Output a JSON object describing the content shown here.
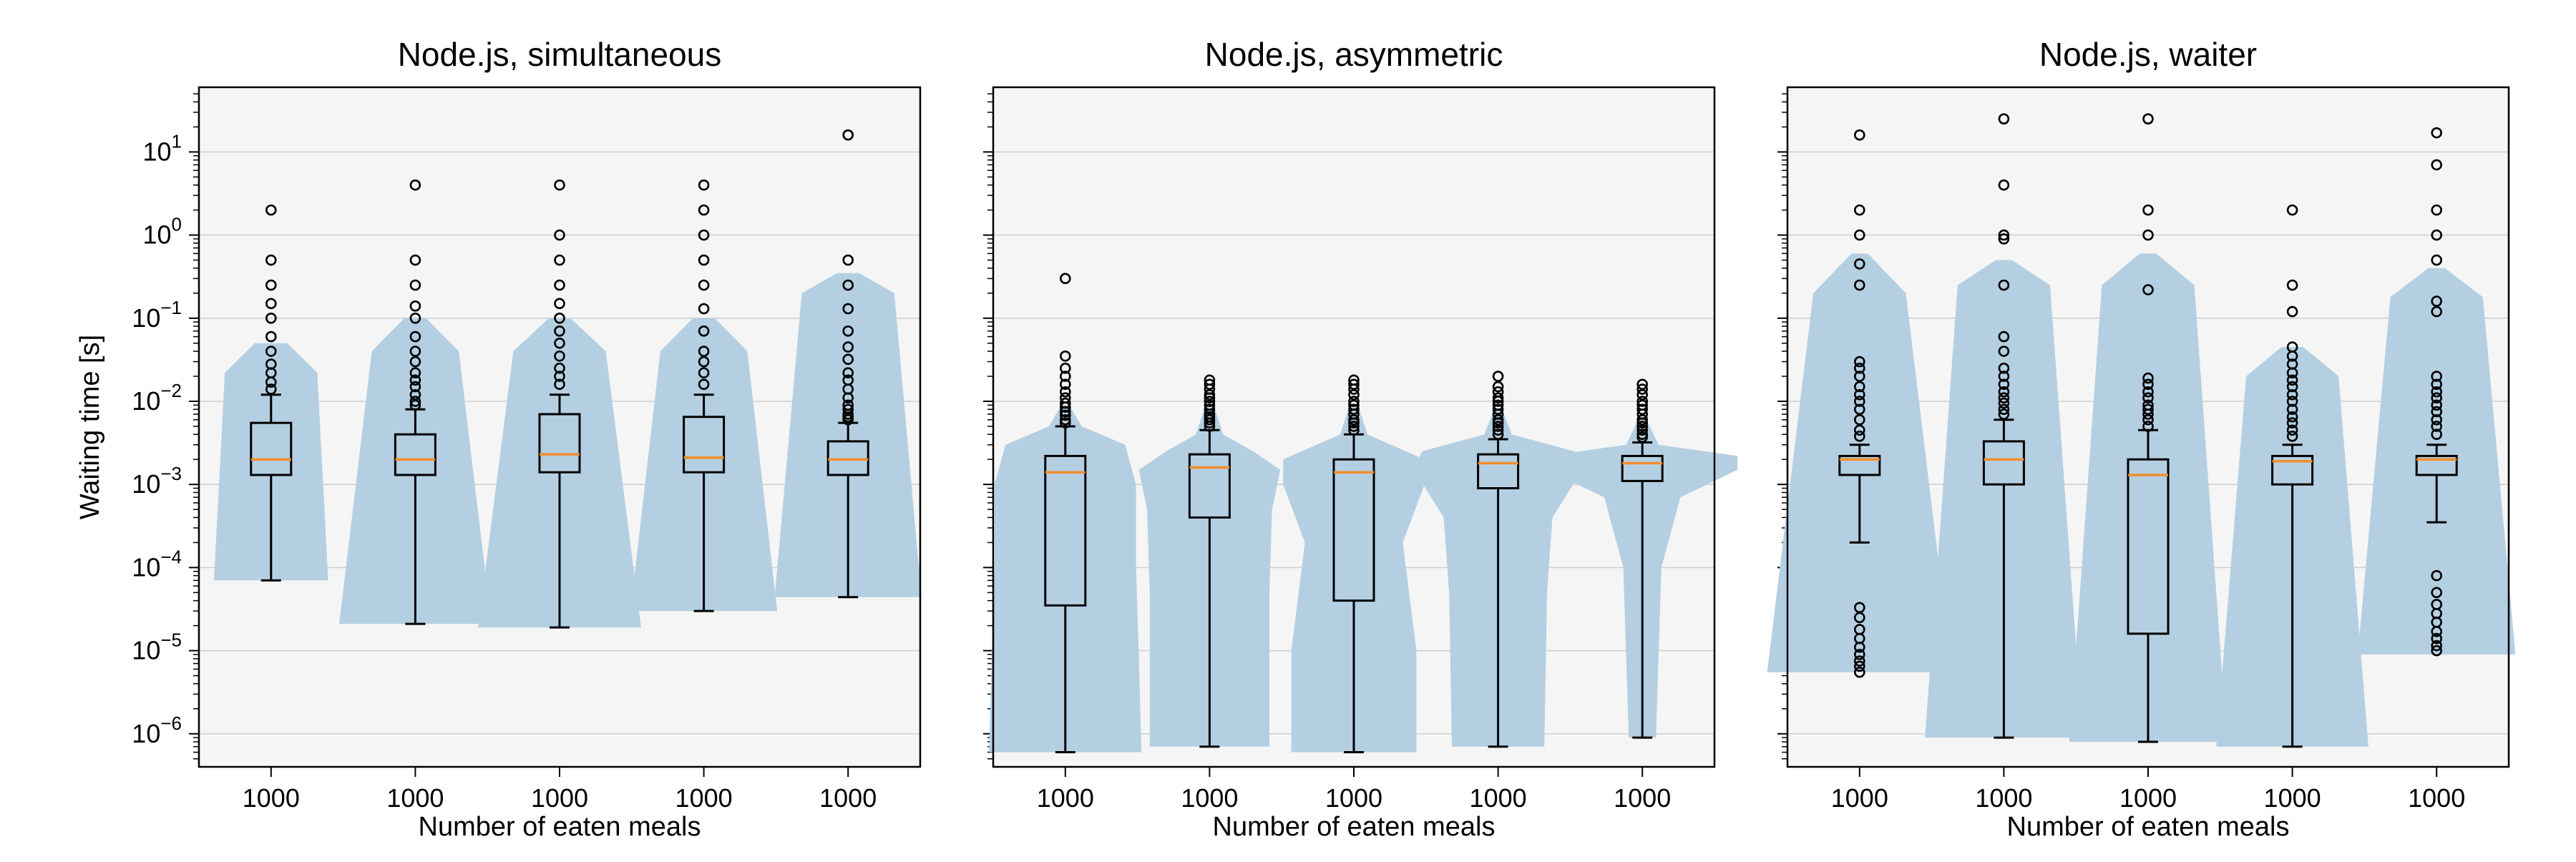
{
  "chart_data": [
    {
      "type": "box-violin",
      "title": "Node.js, simultaneous",
      "xlabel": "Number of eaten meals",
      "ylabel": "Waiting time [s]",
      "yscale": "log",
      "ylim": [
        4e-07,
        60
      ],
      "grid": "y",
      "categories": [
        "1000",
        "1000",
        "1000",
        "1000",
        "1000"
      ],
      "y_ticks": [
        {
          "base": "10",
          "exp": "−6"
        },
        {
          "base": "10",
          "exp": "−5"
        },
        {
          "base": "10",
          "exp": "−4"
        },
        {
          "base": "10",
          "exp": "−3"
        },
        {
          "base": "10",
          "exp": "−2"
        },
        {
          "base": "10",
          "exp": "−1"
        },
        {
          "base": "10",
          "exp": "0"
        },
        {
          "base": "10",
          "exp": "1"
        }
      ],
      "boxes": [
        {
          "whislo": 7e-05,
          "q1": 0.0013,
          "med": 0.002,
          "q3": 0.0055,
          "whishi": 0.012,
          "fliers": [
            2.0,
            0.5,
            0.25,
            0.15,
            0.1,
            0.06,
            0.04,
            0.028,
            0.022,
            0.017,
            0.014
          ],
          "violin": [
            [
              7e-05,
              0.0021
            ],
            [
              0.022,
              0.0017
            ],
            [
              0.05,
              0.0006
            ]
          ]
        },
        {
          "whislo": 2.1e-05,
          "q1": 0.0013,
          "med": 0.002,
          "q3": 0.004,
          "whishi": 0.008,
          "fliers": [
            4.0,
            0.5,
            0.25,
            0.14,
            0.1,
            0.06,
            0.04,
            0.03,
            0.022,
            0.018,
            0.015,
            0.012,
            0.01,
            0.009
          ],
          "violin": [
            [
              2.1e-05,
              0.0028
            ],
            [
              0.04,
              0.0016
            ],
            [
              0.1,
              0.0004
            ]
          ]
        },
        {
          "whislo": 1.9e-05,
          "q1": 0.0014,
          "med": 0.0023,
          "q3": 0.007,
          "whishi": 0.012,
          "fliers": [
            4.0,
            1.0,
            0.5,
            0.25,
            0.15,
            0.1,
            0.07,
            0.05,
            0.035,
            0.025,
            0.02,
            0.016
          ],
          "violin": [
            [
              1.9e-05,
              0.003
            ],
            [
              0.04,
              0.0017
            ],
            [
              0.1,
              0.0004
            ]
          ]
        },
        {
          "whislo": 3e-05,
          "q1": 0.0014,
          "med": 0.0021,
          "q3": 0.0065,
          "whishi": 0.012,
          "fliers": [
            4.0,
            2.0,
            1.0,
            0.5,
            0.25,
            0.13,
            0.07,
            0.04,
            0.03,
            0.022,
            0.016
          ],
          "violin": [
            [
              3e-05,
              0.0027
            ],
            [
              0.04,
              0.0016
            ],
            [
              0.1,
              0.0004
            ]
          ]
        },
        {
          "whislo": 4.4e-05,
          "q1": 0.0013,
          "med": 0.002,
          "q3": 0.0033,
          "whishi": 0.0055,
          "fliers": [
            16.0,
            0.5,
            0.25,
            0.13,
            0.07,
            0.045,
            0.032,
            0.022,
            0.018,
            0.014,
            0.011,
            0.009,
            0.008,
            0.007,
            0.0065,
            0.006
          ],
          "violin": [
            [
              4.4e-05,
              0.0027
            ],
            [
              0.2,
              0.0017
            ],
            [
              0.35,
              0.0004
            ]
          ]
        }
      ]
    },
    {
      "type": "box-violin",
      "title": "Node.js, asymmetric",
      "xlabel": "Number of eaten meals",
      "ylabel": "",
      "yscale": "log",
      "ylim": [
        4e-07,
        60
      ],
      "grid": "y",
      "categories": [
        "1000",
        "1000",
        "1000",
        "1000",
        "1000"
      ],
      "boxes": [
        {
          "whislo": 6e-07,
          "q1": 3.5e-05,
          "med": 0.0014,
          "q3": 0.0022,
          "whishi": 0.005,
          "fliers": [
            0.3,
            0.035,
            0.025,
            0.02,
            0.016,
            0.013,
            0.011,
            0.0095,
            0.0085,
            0.0075,
            0.0068,
            0.006,
            0.0055
          ],
          "violin": [
            [
              6e-07,
              0.0028
            ],
            [
              1e-05,
              0.0027
            ],
            [
              0.0001,
              0.0026
            ],
            [
              0.001,
              0.0026
            ],
            [
              0.003,
              0.0022
            ],
            [
              0.005,
              0.0006
            ],
            [
              0.009,
              0.00015
            ]
          ]
        },
        {
          "whislo": 7e-07,
          "q1": 0.0004,
          "med": 0.0016,
          "q3": 0.0023,
          "whishi": 0.0045,
          "fliers": [
            0.018,
            0.016,
            0.014,
            0.012,
            0.011,
            0.01,
            0.009,
            0.008,
            0.007,
            0.0065,
            0.006,
            0.0055,
            0.005
          ],
          "violin": [
            [
              7e-07,
              0.0022
            ],
            [
              5e-05,
              0.0022
            ],
            [
              0.0005,
              0.0023
            ],
            [
              0.0015,
              0.0026
            ],
            [
              0.0025,
              0.0016
            ],
            [
              0.004,
              0.0005
            ],
            [
              0.009,
              0.00015
            ]
          ]
        },
        {
          "whislo": 6e-07,
          "q1": 4e-05,
          "med": 0.0014,
          "q3": 0.002,
          "whishi": 0.004,
          "fliers": [
            0.018,
            0.016,
            0.014,
            0.012,
            0.01,
            0.009,
            0.008,
            0.007,
            0.006,
            0.0055,
            0.005,
            0.0045
          ],
          "violin": [
            [
              6e-07,
              0.0023
            ],
            [
              1e-05,
              0.0023
            ],
            [
              0.0002,
              0.0018
            ],
            [
              0.001,
              0.0026
            ],
            [
              0.002,
              0.0026
            ],
            [
              0.004,
              0.0005
            ],
            [
              0.009,
              0.00015
            ]
          ]
        },
        {
          "whislo": 7e-07,
          "q1": 0.0009,
          "med": 0.0018,
          "q3": 0.0023,
          "whishi": 0.0035,
          "fliers": [
            0.02,
            0.015,
            0.013,
            0.011,
            0.01,
            0.009,
            0.008,
            0.007,
            0.006,
            0.0055,
            0.005,
            0.0045,
            0.004
          ],
          "violin": [
            [
              7e-07,
              0.0017
            ],
            [
              5e-05,
              0.0018
            ],
            [
              0.0004,
              0.002
            ],
            [
              0.0015,
              0.0031
            ],
            [
              0.0025,
              0.0028
            ],
            [
              0.004,
              0.0005
            ],
            [
              0.008,
              0.00015
            ]
          ]
        },
        {
          "whislo": 9e-07,
          "q1": 0.0011,
          "med": 0.0018,
          "q3": 0.0022,
          "whishi": 0.0032,
          "fliers": [
            0.016,
            0.014,
            0.012,
            0.01,
            0.009,
            0.008,
            0.007,
            0.006,
            0.0055,
            0.005,
            0.0045,
            0.004,
            0.0037
          ],
          "violin": [
            [
              9e-07,
              0.0005
            ],
            [
              0.0001,
              0.0007
            ],
            [
              0.0007,
              0.0014
            ],
            [
              0.0015,
              0.0035
            ],
            [
              0.0022,
              0.0035
            ],
            [
              0.003,
              0.0006
            ],
            [
              0.006,
              0.00015
            ]
          ]
        }
      ]
    },
    {
      "type": "box-violin",
      "title": "Node.js, waiter",
      "xlabel": "Number of eaten meals",
      "ylabel": "",
      "yscale": "log",
      "ylim": [
        4e-07,
        60
      ],
      "grid": "y",
      "categories": [
        "1000",
        "1000",
        "1000",
        "1000",
        "1000"
      ],
      "boxes": [
        {
          "whislo": 0.0002,
          "q1": 0.0013,
          "med": 0.002,
          "q3": 0.0022,
          "whishi": 0.003,
          "fliers": [
            16.0,
            2.0,
            1.0,
            0.45,
            0.25,
            0.03,
            0.025,
            0.02,
            0.015,
            0.012,
            0.01,
            0.008,
            0.006,
            0.0045,
            0.0038,
            3.3e-05,
            2.5e-05,
            1.8e-05,
            1.4e-05,
            1.1e-05,
            9e-06,
            7.5e-06,
            6.5e-06,
            5.5e-06
          ],
          "violin": [
            [
              5.5e-06,
              0.0034
            ],
            [
              0.2,
              0.0017
            ],
            [
              0.6,
              0.0003
            ]
          ]
        },
        {
          "whislo": 9e-07,
          "q1": 0.001,
          "med": 0.002,
          "q3": 0.0033,
          "whishi": 0.006,
          "fliers": [
            25.0,
            4.0,
            1.0,
            0.9,
            0.25,
            0.06,
            0.04,
            0.025,
            0.02,
            0.016,
            0.013,
            0.011,
            0.0095,
            0.008,
            0.007
          ],
          "violin": [
            [
              9e-07,
              0.0029
            ],
            [
              0.25,
              0.0017
            ],
            [
              0.5,
              0.0003
            ]
          ]
        },
        {
          "whislo": 8e-07,
          "q1": 1.6e-05,
          "med": 0.0013,
          "q3": 0.002,
          "whishi": 0.0045,
          "fliers": [
            25.0,
            2.0,
            1.0,
            0.22,
            0.019,
            0.016,
            0.013,
            0.011,
            0.009,
            0.008,
            0.007,
            0.006,
            0.005
          ],
          "violin": [
            [
              8e-07,
              0.0029
            ],
            [
              0.25,
              0.0017
            ],
            [
              0.6,
              0.0003
            ]
          ]
        },
        {
          "whislo": 7e-07,
          "q1": 0.001,
          "med": 0.0019,
          "q3": 0.0022,
          "whishi": 0.003,
          "fliers": [
            2.0,
            0.25,
            0.12,
            0.045,
            0.035,
            0.028,
            0.022,
            0.018,
            0.015,
            0.012,
            0.01,
            0.008,
            0.0065,
            0.0055,
            0.0045,
            0.0038
          ],
          "violin": [
            [
              7e-07,
              0.0028
            ],
            [
              0.02,
              0.0017
            ],
            [
              0.045,
              0.0004
            ]
          ]
        },
        {
          "whislo": 0.00035,
          "q1": 0.0013,
          "med": 0.002,
          "q3": 0.0022,
          "whishi": 0.003,
          "fliers": [
            17.0,
            7.0,
            2.0,
            1.0,
            0.5,
            0.16,
            0.12,
            0.02,
            0.016,
            0.013,
            0.011,
            0.009,
            0.0075,
            0.006,
            0.005,
            0.004,
            8e-05,
            5e-05,
            3.6e-05,
            2.8e-05,
            2.2e-05,
            1.7e-05,
            1.4e-05,
            1.15e-05,
            1e-05
          ],
          "violin": [
            [
              9e-06,
              0.0029
            ],
            [
              0.18,
              0.0017
            ],
            [
              0.4,
              0.0003
            ]
          ]
        }
      ]
    }
  ],
  "colors": {
    "violin_fill": "#b5cfe2",
    "panel_bg": "#f5f5f5",
    "median": "#f28e2b",
    "gridline": "#d0d0d0",
    "stroke": "#000000"
  }
}
